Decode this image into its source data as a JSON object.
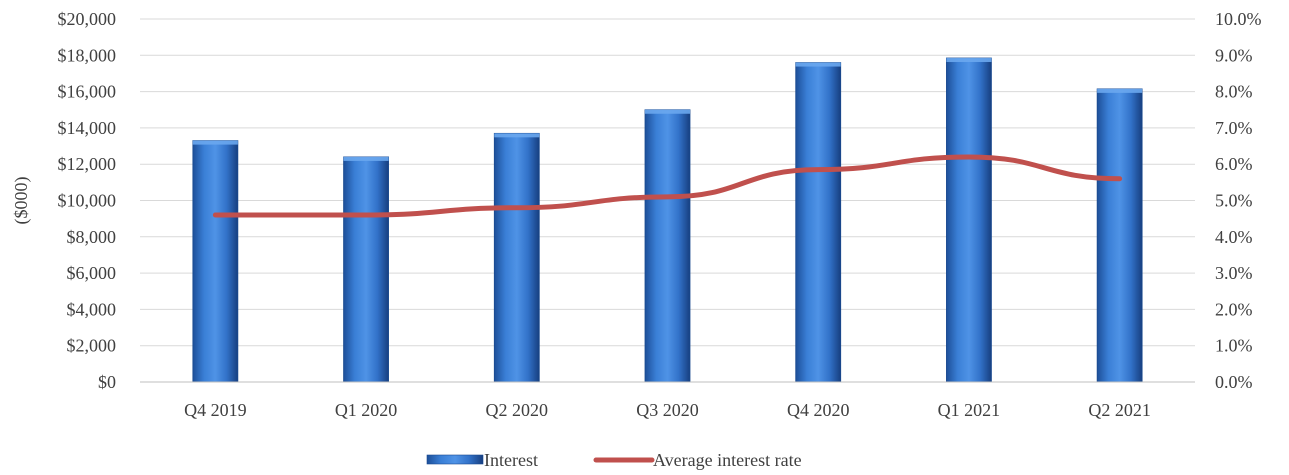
{
  "chart_data": {
    "type": "bar",
    "categories": [
      "Q4 2019",
      "Q1 2020",
      "Q2 2020",
      "Q3 2020",
      "Q4 2020",
      "Q1 2021",
      "Q2 2021"
    ],
    "series": [
      {
        "name": "Interest",
        "type": "bar",
        "axis": "left",
        "values": [
          13300,
          12400,
          13700,
          15000,
          17600,
          17850,
          16150
        ],
        "color": "#2e6fc4"
      },
      {
        "name": "Average interest rate",
        "type": "line",
        "axis": "right",
        "values": [
          4.6,
          4.6,
          4.8,
          5.1,
          5.85,
          6.2,
          5.6
        ],
        "color": "#c0504d"
      }
    ],
    "ylabel": "($000)",
    "ylim": [
      0,
      20000
    ],
    "y_ticks": [
      0,
      2000,
      4000,
      6000,
      8000,
      10000,
      12000,
      14000,
      16000,
      18000,
      20000
    ],
    "y_tick_labels": [
      "$0",
      "$2,000",
      "$4,000",
      "$6,000",
      "$8,000",
      "$10,000",
      "$12,000",
      "$14,000",
      "$16,000",
      "$18,000",
      "$20,000"
    ],
    "y2lim": [
      0,
      10
    ],
    "y2_ticks": [
      0,
      1,
      2,
      3,
      4,
      5,
      6,
      7,
      8,
      9,
      10
    ],
    "y2_tick_labels": [
      "0.0%",
      "1.0%",
      "2.0%",
      "3.0%",
      "4.0%",
      "5.0%",
      "6.0%",
      "7.0%",
      "8.0%",
      "9.0%",
      "10.0%"
    ],
    "grid": true,
    "legend_position": "bottom-center"
  }
}
